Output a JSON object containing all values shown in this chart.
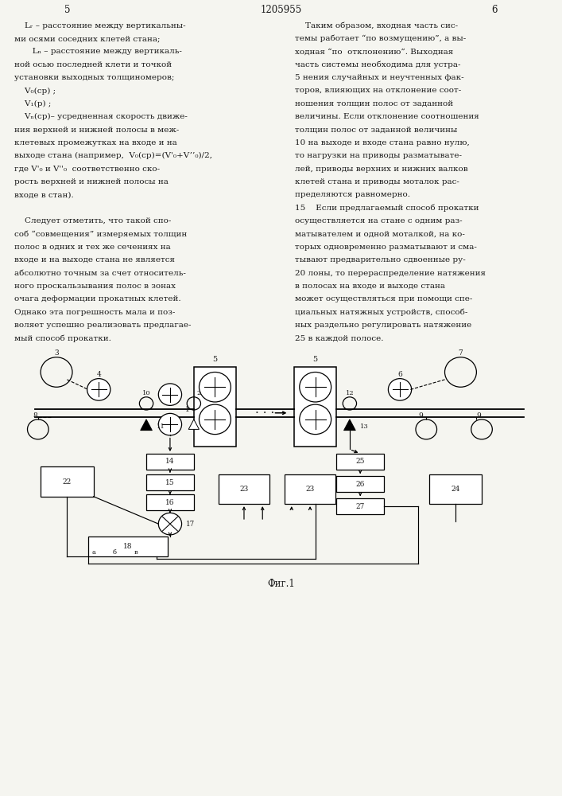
{
  "page_number_left": "5",
  "page_number_center": "1205955",
  "page_number_right": "6",
  "background_color": "#f5f5f0",
  "text_color": "#1a1a1a",
  "fig_caption": "Фиг.1",
  "left_col_lines": [
    "    Lᵣ – расстояние между вертикальны-",
    "ми осями соседних клетей стана;",
    "       Lₙ – расстояние между вертикаль-",
    "ной осью последней клети и точкой",
    "установки выходных толщиномеров;",
    "    V₀(ср) ;",
    "    V₁(р) ;",
    "    Vₙ(ср)– усредненная скорость движе-",
    "ния верхней и нижней полосы в меж-",
    "клетевых промежутках на входе и на",
    "выходе стана (например,  V₀(ср)=(V'₀+V’’₀)/2,",
    "где V'₀ и V''₀  соответственно ско-",
    "рость верхней и нижней полосы на",
    "входе в стан).",
    "",
    "    Следует отметить, что такой спо-",
    "соб “совмещения” измеряемых толщин",
    "полос в одних и тех же сечениях на",
    "входе и на выходе стана не является",
    "абсолютно точным за счет относитель-",
    "ного проскальзывания полос в зонах",
    "очага деформации прокатных клетей.",
    "Однако эта погрешность мала и поз-",
    "воляет успешно реализовать предлагае-",
    "мый способ прокатки."
  ],
  "right_col_lines": [
    "    Таким образом, входная часть сис-",
    "темы работает “по возмущению”, а вы-",
    "ходная “по  отклонению”. Выходная",
    "часть системы необходима для устра-",
    "5 нения случайных и неучтенных фак-",
    "торов, влияющих на отклонение соот-",
    "ношения толщин полос от заданной",
    "величины. Если отклонение соотношения",
    "толщин полос от заданной величины",
    "10 на выходе и входе стана равно нулю,",
    "то нагрузки на приводы разматывате-",
    "лей, приводы верхних и нижних валков",
    "клетей стана и приводы моталок рас-",
    "пределяются равномерно.",
    "15    Если предлагаемый способ прокатки",
    "осуществляется на стане с одним раз-",
    "матывателем и одной моталкой, на ко-",
    "торых одновременно разматывают и сма-",
    "тывают предварительно сдвоенные ру-",
    "20 лоны, то перераспределение натяжения",
    "в полосах на входе и выходе стана",
    "может осуществляться при помощи спе-",
    "циальных натяжных устройств, способ-",
    "ных раздельно регулировать натяжение",
    "25 в каждой полосе."
  ]
}
